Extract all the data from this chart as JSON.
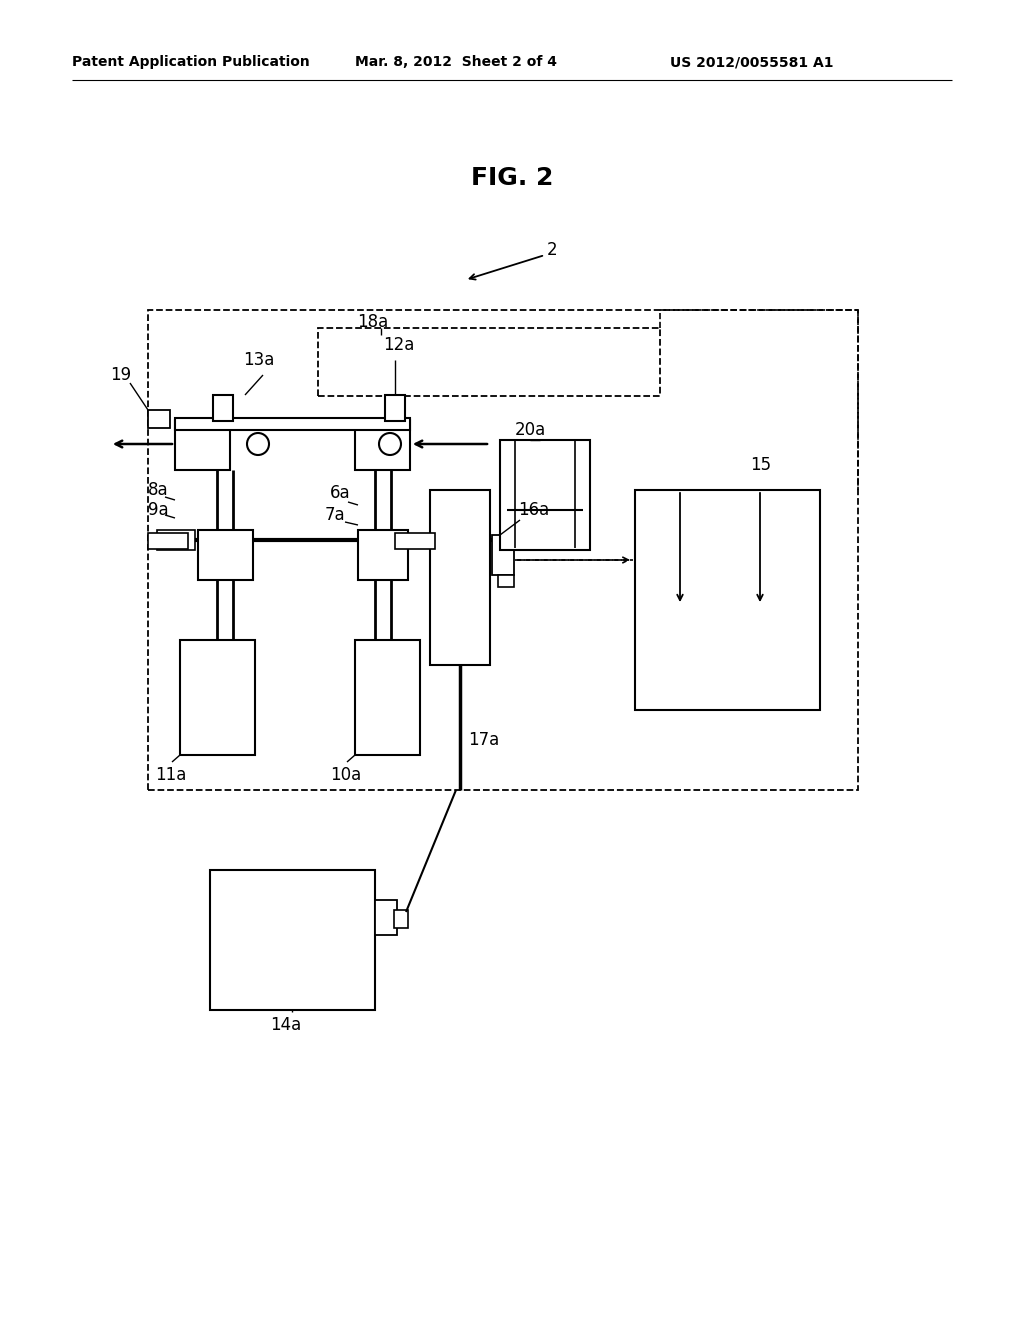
{
  "bg_color": "#ffffff",
  "header_left": "Patent Application Publication",
  "header_center": "Mar. 8, 2012  Sheet 2 of 4",
  "header_right": "US 2012/0055581 A1",
  "fig_label": "FIG. 2"
}
